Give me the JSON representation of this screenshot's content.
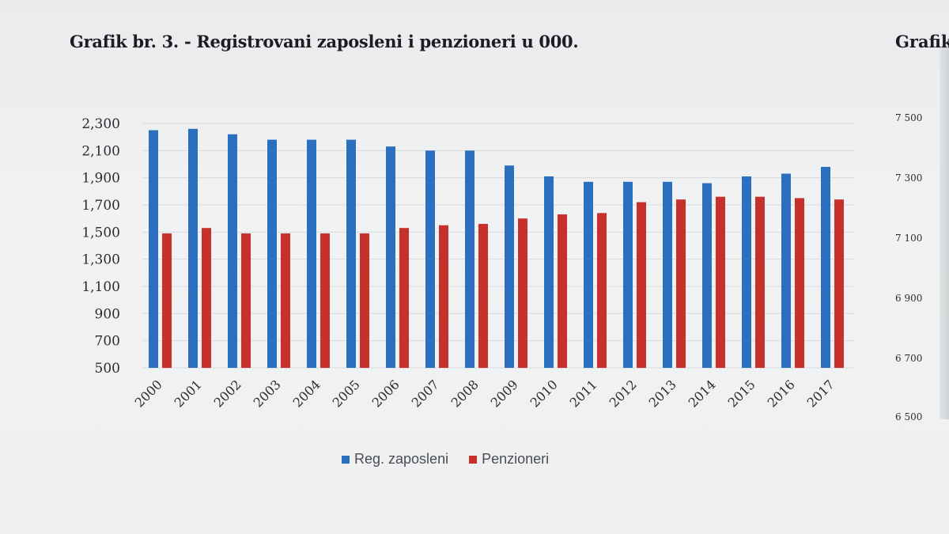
{
  "title": "Grafik br. 3. - Registrovani zaposleni i penzioneri u 000.",
  "next_chart_title_fragment": "Grafik",
  "right_axis_ticks": [
    "7 500",
    "7 300",
    "7 100",
    "6 900",
    "6 700",
    "6 500"
  ],
  "colors": {
    "reg_zaposleni": "#2c6fbf",
    "penzioneri": "#c8302c",
    "grid": "#d8dadc"
  },
  "chart_data": {
    "type": "bar",
    "title": "Grafik br. 3. - Registrovani zaposleni i penzioneri u 000.",
    "xlabel": "",
    "ylabel": "",
    "ylim": [
      500,
      2300
    ],
    "yticks": [
      500,
      700,
      900,
      1100,
      1300,
      1500,
      1700,
      1900,
      2100,
      2300
    ],
    "ytick_labels": [
      "500",
      "700",
      "900",
      "1,100",
      "1,300",
      "1,500",
      "1,700",
      "1,900",
      "2,100",
      "2,300"
    ],
    "grid": true,
    "legend_position": "bottom",
    "categories": [
      "2000",
      "2001",
      "2002",
      "2003",
      "2004",
      "2005",
      "2006",
      "2007",
      "2008",
      "2009",
      "2010",
      "2011",
      "2012",
      "2013",
      "2014",
      "2015",
      "2016",
      "2017"
    ],
    "series": [
      {
        "name": "Reg. zaposleni",
        "values": [
          2250,
          2260,
          2220,
          2180,
          2180,
          2180,
          2130,
          2100,
          2100,
          1990,
          1910,
          1870,
          1870,
          1870,
          1860,
          1910,
          1930,
          1980
        ]
      },
      {
        "name": "Penzioneri",
        "values": [
          1490,
          1530,
          1490,
          1490,
          1490,
          1490,
          1530,
          1550,
          1560,
          1600,
          1630,
          1640,
          1720,
          1740,
          1760,
          1760,
          1750,
          1740
        ]
      }
    ]
  }
}
